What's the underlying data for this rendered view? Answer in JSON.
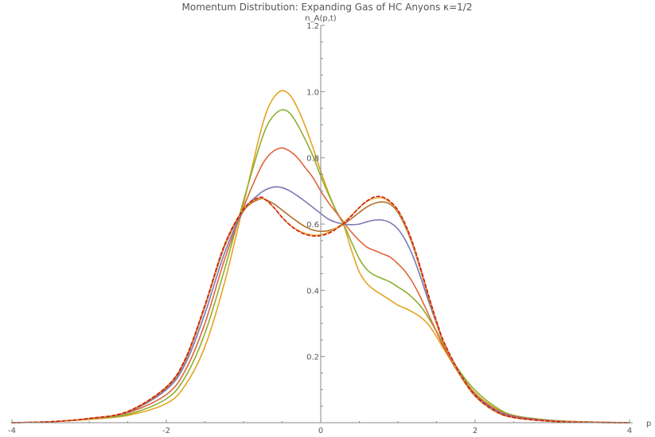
{
  "chart_data": {
    "type": "line",
    "title": "Momentum Distribution: Expanding Gas of HC Anyons κ=1/2",
    "xlabel": "p",
    "ylabel": "n_A(p,t)",
    "xlim": [
      -4,
      4
    ],
    "ylim": [
      0,
      1.2
    ],
    "x_ticks": [
      -4,
      -2,
      0,
      2,
      4
    ],
    "y_ticks": [
      0.2,
      0.4,
      0.6,
      0.8,
      1.0,
      1.2
    ],
    "x_tick_labels": [
      "-4",
      "-2",
      "0",
      "2",
      "4"
    ],
    "y_tick_labels": [
      "0.2",
      "0.4",
      "0.6",
      "0.8",
      "1.0",
      "1.2"
    ],
    "grid": false,
    "x": [
      -4.0,
      -3.5,
      -3.0,
      -2.5,
      -2.0,
      -1.75,
      -1.5,
      -1.25,
      -1.0,
      -0.8,
      -0.7,
      -0.6,
      -0.5,
      -0.4,
      -0.3,
      -0.2,
      -0.1,
      0.0,
      0.1,
      0.2,
      0.3,
      0.4,
      0.5,
      0.6,
      0.7,
      0.8,
      0.9,
      1.0,
      1.1,
      1.2,
      1.3,
      1.4,
      1.5,
      1.6,
      1.8,
      2.0,
      2.25,
      2.5,
      3.0,
      3.5,
      4.0
    ],
    "series": [
      {
        "color": "#E4A31F",
        "dashed": false,
        "values": [
          0.0,
          0.003,
          0.01,
          0.022,
          0.058,
          0.115,
          0.23,
          0.42,
          0.66,
          0.86,
          0.94,
          0.985,
          1.003,
          0.99,
          0.95,
          0.895,
          0.83,
          0.76,
          0.695,
          0.64,
          0.595,
          0.52,
          0.455,
          0.42,
          0.4,
          0.385,
          0.37,
          0.355,
          0.345,
          0.333,
          0.318,
          0.295,
          0.26,
          0.22,
          0.15,
          0.09,
          0.045,
          0.02,
          0.006,
          0.002,
          0.0
        ]
      },
      {
        "color": "#8BAF2E",
        "dashed": false,
        "values": [
          0.0,
          0.003,
          0.012,
          0.025,
          0.072,
          0.14,
          0.27,
          0.46,
          0.67,
          0.83,
          0.895,
          0.93,
          0.945,
          0.935,
          0.9,
          0.855,
          0.805,
          0.745,
          0.69,
          0.64,
          0.598,
          0.545,
          0.495,
          0.462,
          0.445,
          0.435,
          0.425,
          0.41,
          0.395,
          0.375,
          0.35,
          0.315,
          0.275,
          0.23,
          0.155,
          0.098,
          0.05,
          0.022,
          0.007,
          0.002,
          0.0
        ]
      },
      {
        "color": "#E0643A",
        "dashed": false,
        "values": [
          0.0,
          0.003,
          0.012,
          0.03,
          0.085,
          0.16,
          0.3,
          0.49,
          0.65,
          0.76,
          0.8,
          0.822,
          0.83,
          0.82,
          0.8,
          0.77,
          0.74,
          0.7,
          0.665,
          0.635,
          0.605,
          0.575,
          0.55,
          0.53,
          0.52,
          0.51,
          0.5,
          0.48,
          0.455,
          0.42,
          0.375,
          0.325,
          0.275,
          0.225,
          0.145,
          0.085,
          0.042,
          0.02,
          0.006,
          0.002,
          0.0
        ]
      },
      {
        "color": "#7C78B8",
        "dashed": false,
        "values": [
          0.0,
          0.003,
          0.012,
          0.032,
          0.1,
          0.18,
          0.33,
          0.51,
          0.64,
          0.69,
          0.705,
          0.712,
          0.71,
          0.7,
          0.685,
          0.668,
          0.65,
          0.632,
          0.615,
          0.605,
          0.6,
          0.598,
          0.6,
          0.607,
          0.612,
          0.612,
          0.604,
          0.585,
          0.55,
          0.5,
          0.435,
          0.365,
          0.3,
          0.24,
          0.15,
          0.085,
          0.04,
          0.018,
          0.005,
          0.001,
          0.0
        ]
      },
      {
        "color": "#B06E2B",
        "dashed": false,
        "values": [
          0.0,
          0.003,
          0.012,
          0.033,
          0.105,
          0.19,
          0.35,
          0.53,
          0.64,
          0.675,
          0.672,
          0.66,
          0.642,
          0.624,
          0.607,
          0.592,
          0.582,
          0.578,
          0.58,
          0.588,
          0.6,
          0.617,
          0.635,
          0.652,
          0.663,
          0.667,
          0.66,
          0.635,
          0.59,
          0.53,
          0.455,
          0.375,
          0.3,
          0.235,
          0.145,
          0.08,
          0.035,
          0.015,
          0.004,
          0.001,
          0.0
        ]
      },
      {
        "color": "#E8B93A",
        "dashed": false,
        "values": [
          0.0,
          0.003,
          0.013,
          0.034,
          0.108,
          0.195,
          0.355,
          0.535,
          0.645,
          0.678,
          0.67,
          0.648,
          0.62,
          0.598,
          0.582,
          0.572,
          0.567,
          0.568,
          0.575,
          0.588,
          0.605,
          0.627,
          0.65,
          0.668,
          0.678,
          0.678,
          0.665,
          0.64,
          0.595,
          0.535,
          0.46,
          0.38,
          0.305,
          0.24,
          0.148,
          0.082,
          0.036,
          0.015,
          0.004,
          0.001,
          0.0
        ]
      },
      {
        "color": "#D11A1A",
        "dashed": true,
        "values": [
          0.0,
          0.003,
          0.013,
          0.034,
          0.108,
          0.195,
          0.355,
          0.535,
          0.645,
          0.68,
          0.671,
          0.648,
          0.62,
          0.597,
          0.58,
          0.569,
          0.564,
          0.565,
          0.572,
          0.585,
          0.603,
          0.625,
          0.65,
          0.67,
          0.682,
          0.682,
          0.668,
          0.642,
          0.597,
          0.537,
          0.462,
          0.382,
          0.307,
          0.242,
          0.15,
          0.083,
          0.037,
          0.016,
          0.004,
          0.001,
          0.0
        ]
      }
    ]
  }
}
